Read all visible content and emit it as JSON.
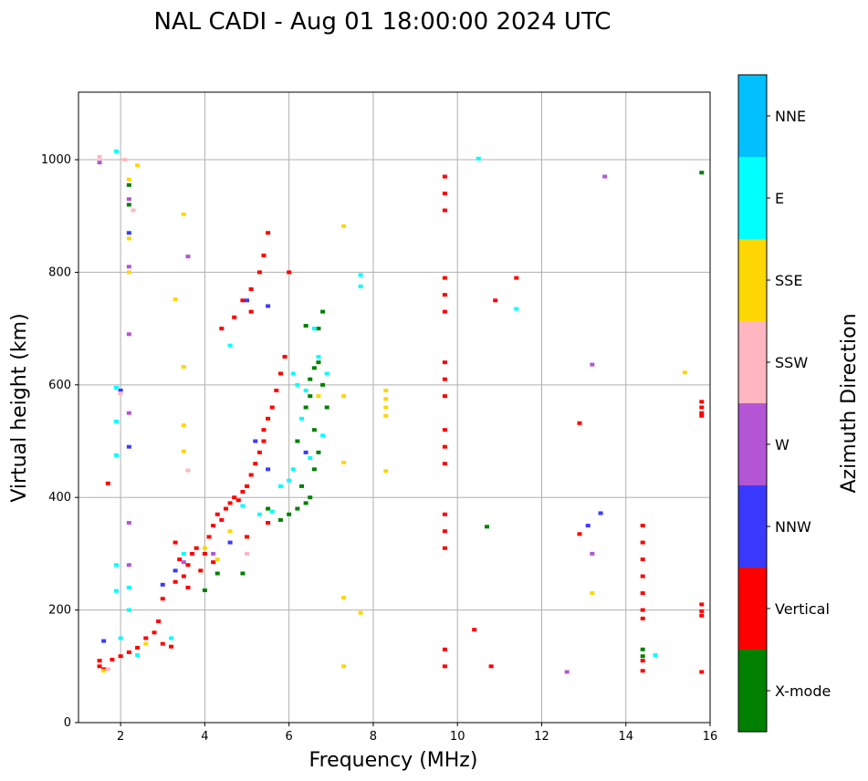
{
  "chart_data": {
    "type": "scatter",
    "title": "NAL CADI - Aug 01 18:00:00 2024 UTC",
    "xlabel": "Frequency (MHz)",
    "ylabel": "Virtual height (km)",
    "xlim": [
      1,
      16
    ],
    "ylim": [
      0,
      1120
    ],
    "xticks": [
      2,
      4,
      6,
      8,
      10,
      12,
      14,
      16
    ],
    "yticks": [
      0,
      200,
      400,
      600,
      800,
      1000
    ],
    "grid": true,
    "colorbar": {
      "title": "Azimuth Direction",
      "categories": [
        "X-mode",
        "Vertical",
        "NNW",
        "W",
        "SSW",
        "SSE",
        "E",
        "NNE"
      ],
      "colors": [
        "#008000",
        "#ff0000",
        "#3a3aff",
        "#b455d6",
        "#ffb6c1",
        "#ffd700",
        "#00ffff",
        "#00bfff"
      ]
    },
    "series": [
      {
        "name": "X-mode",
        "points": [
          [
            2.2,
            955
          ],
          [
            2.2,
            920
          ],
          [
            6.2,
            380
          ],
          [
            6.4,
            390
          ],
          [
            6.5,
            400
          ],
          [
            6.6,
            450
          ],
          [
            6.7,
            480
          ],
          [
            6.3,
            420
          ],
          [
            6.5,
            610
          ],
          [
            6.6,
            630
          ],
          [
            6.7,
            700
          ],
          [
            6.8,
            730
          ],
          [
            6.2,
            500
          ],
          [
            6.4,
            560
          ],
          [
            6.5,
            580
          ],
          [
            6.6,
            520
          ],
          [
            5.5,
            380
          ],
          [
            5.8,
            360
          ],
          [
            6.0,
            370
          ],
          [
            4.3,
            265
          ],
          [
            4.9,
            265
          ],
          [
            4.0,
            235
          ],
          [
            10.7,
            348
          ],
          [
            14.4,
            130
          ],
          [
            14.4,
            118
          ],
          [
            15.8,
            977
          ],
          [
            6.7,
            640
          ],
          [
            6.4,
            705
          ],
          [
            6.8,
            600
          ],
          [
            6.9,
            560
          ]
        ]
      },
      {
        "name": "Vertical",
        "points": [
          [
            1.5,
            110
          ],
          [
            1.5,
            100
          ],
          [
            1.6,
            95
          ],
          [
            1.8,
            112
          ],
          [
            2.0,
            118
          ],
          [
            2.2,
            125
          ],
          [
            2.4,
            133
          ],
          [
            2.6,
            150
          ],
          [
            2.8,
            160
          ],
          [
            2.9,
            180
          ],
          [
            3.0,
            140
          ],
          [
            3.2,
            135
          ],
          [
            3.0,
            220
          ],
          [
            3.3,
            250
          ],
          [
            3.4,
            290
          ],
          [
            3.6,
            280
          ],
          [
            3.7,
            300
          ],
          [
            3.8,
            310
          ],
          [
            3.9,
            270
          ],
          [
            3.6,
            240
          ],
          [
            3.5,
            260
          ],
          [
            4.0,
            300
          ],
          [
            4.1,
            330
          ],
          [
            4.2,
            350
          ],
          [
            4.3,
            370
          ],
          [
            4.4,
            360
          ],
          [
            4.5,
            380
          ],
          [
            4.6,
            390
          ],
          [
            4.7,
            400
          ],
          [
            4.8,
            395
          ],
          [
            4.9,
            410
          ],
          [
            5.0,
            420
          ],
          [
            5.1,
            440
          ],
          [
            5.2,
            460
          ],
          [
            5.3,
            480
          ],
          [
            5.4,
            500
          ],
          [
            5.4,
            520
          ],
          [
            5.5,
            540
          ],
          [
            5.6,
            560
          ],
          [
            5.7,
            590
          ],
          [
            5.8,
            620
          ],
          [
            5.9,
            650
          ],
          [
            4.4,
            700
          ],
          [
            4.7,
            720
          ],
          [
            4.9,
            750
          ],
          [
            5.1,
            770
          ],
          [
            5.3,
            800
          ],
          [
            5.4,
            830
          ],
          [
            5.5,
            870
          ],
          [
            5.1,
            730
          ],
          [
            3.3,
            320
          ],
          [
            4.2,
            285
          ],
          [
            5.0,
            330
          ],
          [
            5.5,
            355
          ],
          [
            1.7,
            425
          ],
          [
            9.7,
            970
          ],
          [
            9.7,
            940
          ],
          [
            9.7,
            910
          ],
          [
            9.7,
            790
          ],
          [
            9.7,
            760
          ],
          [
            9.7,
            730
          ],
          [
            9.7,
            640
          ],
          [
            9.7,
            610
          ],
          [
            9.7,
            580
          ],
          [
            9.7,
            520
          ],
          [
            9.7,
            490
          ],
          [
            9.7,
            460
          ],
          [
            9.7,
            370
          ],
          [
            9.7,
            340
          ],
          [
            9.7,
            310
          ],
          [
            9.7,
            130
          ],
          [
            9.7,
            100
          ],
          [
            10.4,
            165
          ],
          [
            10.8,
            100
          ],
          [
            10.9,
            750
          ],
          [
            11.4,
            790
          ],
          [
            12.9,
            532
          ],
          [
            12.9,
            335
          ],
          [
            14.4,
            350
          ],
          [
            14.4,
            320
          ],
          [
            14.4,
            290
          ],
          [
            14.4,
            260
          ],
          [
            14.4,
            230
          ],
          [
            14.4,
            200
          ],
          [
            14.4,
            185
          ],
          [
            14.4,
            110
          ],
          [
            14.4,
            92
          ],
          [
            15.8,
            570
          ],
          [
            15.8,
            560
          ],
          [
            15.8,
            550
          ],
          [
            15.8,
            545
          ],
          [
            15.8,
            210
          ],
          [
            15.8,
            198
          ],
          [
            15.8,
            190
          ],
          [
            15.8,
            90
          ],
          [
            6.0,
            800
          ]
        ]
      },
      {
        "name": "NNW",
        "points": [
          [
            1.6,
            145
          ],
          [
            2.2,
            870
          ],
          [
            2.2,
            490
          ],
          [
            2.0,
            590
          ],
          [
            3.0,
            245
          ],
          [
            3.3,
            270
          ],
          [
            5.2,
            500
          ],
          [
            5.5,
            450
          ],
          [
            6.4,
            480
          ],
          [
            4.6,
            320
          ],
          [
            13.1,
            350
          ],
          [
            13.4,
            372
          ],
          [
            5.0,
            750
          ],
          [
            5.5,
            740
          ]
        ]
      },
      {
        "name": "W",
        "points": [
          [
            1.5,
            995
          ],
          [
            2.2,
            930
          ],
          [
            2.2,
            690
          ],
          [
            2.2,
            810
          ],
          [
            2.2,
            550
          ],
          [
            2.2,
            355
          ],
          [
            2.2,
            280
          ],
          [
            3.6,
            828
          ],
          [
            13.2,
            300
          ],
          [
            13.2,
            636
          ],
          [
            13.5,
            970
          ],
          [
            12.6,
            90
          ],
          [
            4.2,
            300
          ],
          [
            3.5,
            285
          ]
        ]
      },
      {
        "name": "SSW",
        "points": [
          [
            1.5,
            1005
          ],
          [
            2.1,
            1000
          ],
          [
            2.0,
            585
          ],
          [
            2.3,
            910
          ],
          [
            3.6,
            448
          ],
          [
            5.0,
            300
          ],
          [
            1.7,
            95
          ]
        ]
      },
      {
        "name": "SSE",
        "points": [
          [
            2.4,
            990
          ],
          [
            2.2,
            965
          ],
          [
            2.2,
            860
          ],
          [
            2.2,
            800
          ],
          [
            3.3,
            752
          ],
          [
            3.5,
            903
          ],
          [
            3.5,
            632
          ],
          [
            3.5,
            528
          ],
          [
            3.5,
            482
          ],
          [
            7.3,
            882
          ],
          [
            7.3,
            580
          ],
          [
            7.3,
            462
          ],
          [
            7.3,
            222
          ],
          [
            7.3,
            100
          ],
          [
            7.7,
            195
          ],
          [
            8.3,
            590
          ],
          [
            8.3,
            575
          ],
          [
            8.3,
            560
          ],
          [
            8.3,
            545
          ],
          [
            8.3,
            447
          ],
          [
            13.2,
            230
          ],
          [
            15.4,
            622
          ],
          [
            1.6,
            92
          ],
          [
            2.6,
            140
          ],
          [
            4.0,
            310
          ],
          [
            4.3,
            290
          ],
          [
            4.6,
            340
          ],
          [
            6.7,
            580
          ]
        ]
      },
      {
        "name": "E",
        "points": [
          [
            1.9,
            1015
          ],
          [
            1.9,
            595
          ],
          [
            1.9,
            535
          ],
          [
            1.9,
            475
          ],
          [
            1.9,
            280
          ],
          [
            1.9,
            234
          ],
          [
            2.0,
            150
          ],
          [
            2.2,
            200
          ],
          [
            2.2,
            240
          ],
          [
            2.4,
            120
          ],
          [
            3.2,
            150
          ],
          [
            3.5,
            300
          ],
          [
            4.6,
            670
          ],
          [
            4.9,
            385
          ],
          [
            5.3,
            370
          ],
          [
            5.6,
            375
          ],
          [
            5.8,
            420
          ],
          [
            6.1,
            450
          ],
          [
            6.2,
            600
          ],
          [
            6.3,
            540
          ],
          [
            6.5,
            470
          ],
          [
            6.7,
            650
          ],
          [
            6.9,
            620
          ],
          [
            6.0,
            430
          ],
          [
            6.8,
            510
          ],
          [
            7.7,
            795
          ],
          [
            7.7,
            775
          ],
          [
            10.5,
            1002
          ],
          [
            11.4,
            735
          ],
          [
            14.7,
            120
          ],
          [
            6.6,
            700
          ],
          [
            6.1,
            620
          ],
          [
            6.4,
            590
          ]
        ]
      },
      {
        "name": "NNE",
        "points": []
      }
    ]
  }
}
